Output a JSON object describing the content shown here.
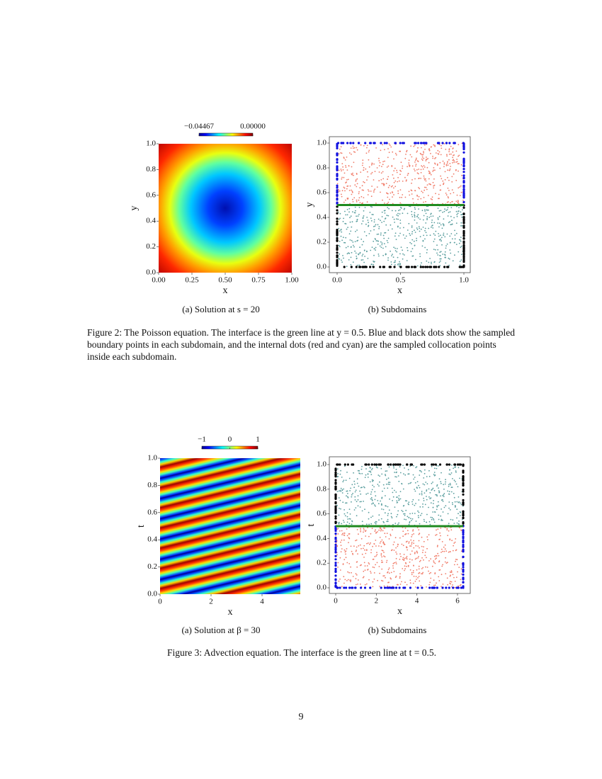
{
  "chart_data": [
    {
      "type": "heatmap",
      "x_label": "x",
      "y_label": "y",
      "xlim": [
        0,
        1
      ],
      "ylim": [
        0,
        1
      ],
      "xticks": [
        {
          "value": 0,
          "label": "0.00"
        },
        0.25,
        {
          "value": 0.5,
          "label": "0.50"
        },
        0.75,
        {
          "value": 1,
          "label": "1.00"
        }
      ],
      "yticks": [
        {
          "value": 0,
          "label": "0.0"
        },
        0.2,
        0.4,
        0.6,
        0.8,
        {
          "value": 1,
          "label": "1.0"
        }
      ],
      "clim": [
        -0.04467,
        0
      ],
      "cticks": [
        {
          "value": -0.04467,
          "label": "−0.04467"
        },
        {
          "value": 0,
          "label": "0.00000"
        }
      ]
    },
    {
      "type": "scatter",
      "x_label": "x",
      "y_label": "y",
      "xlim": [
        0,
        1
      ],
      "ylim": [
        0,
        1
      ],
      "xticks": [
        {
          "value": 0,
          "label": "0.0"
        },
        0.5,
        {
          "value": 1,
          "label": "1.0"
        }
      ],
      "yticks": [
        {
          "value": 0,
          "label": "0.0"
        },
        0.2,
        0.4,
        0.6,
        0.8,
        {
          "value": 1,
          "label": "1.0"
        }
      ],
      "interface": 0.5,
      "interface_color": "#1f8a1f",
      "upper_color": "#f07b68",
      "lower_color": "#5a9e9e",
      "upper_boundary_color": "#1010e0",
      "lower_boundary_color": "#000000"
    },
    {
      "type": "heatmap",
      "x_label": "x",
      "y_label": "t",
      "xlim": [
        0,
        5.5
      ],
      "ylim": [
        0,
        1
      ],
      "xticks": [
        0,
        2,
        4
      ],
      "yticks": [
        {
          "value": 0,
          "label": "0.0"
        },
        0.2,
        0.4,
        0.6,
        0.8,
        {
          "value": 1,
          "label": "1.0"
        }
      ],
      "clim": [
        -1,
        1
      ],
      "cticks": [
        {
          "value": -1,
          "label": "−1"
        },
        0,
        1
      ]
    },
    {
      "type": "scatter",
      "x_label": "x",
      "y_label": "t",
      "xlim": [
        0,
        6.28
      ],
      "ylim": [
        0,
        1
      ],
      "xticks": [
        0,
        2,
        4,
        6
      ],
      "yticks": [
        {
          "value": 0,
          "label": "0.0"
        },
        0.2,
        0.4,
        0.6,
        0.8,
        {
          "value": 1,
          "label": "1.0"
        }
      ],
      "interface": 0.5,
      "interface_color": "#1f8a1f",
      "upper_color": "#5a9e9e",
      "lower_color": "#f07b68",
      "upper_boundary_color": "#000000",
      "lower_boundary_color": "#1010e0"
    }
  ],
  "subcaptions": [
    "(a) Solution at s = 20",
    "(b) Subdomains",
    "(a) Solution at β = 30",
    "(b) Subdomains"
  ],
  "figure_captions": [
    "Figure 2: The Poisson equation. The interface is the green line at y = 0.5. Blue and black dots show the sampled boundary points in each subdomain, and the internal dots (red and cyan) are the sampled collocation points inside each subdomain.",
    "Figure 3: Advection equation. The interface is the green line at t = 0.5."
  ],
  "page_number": "9"
}
